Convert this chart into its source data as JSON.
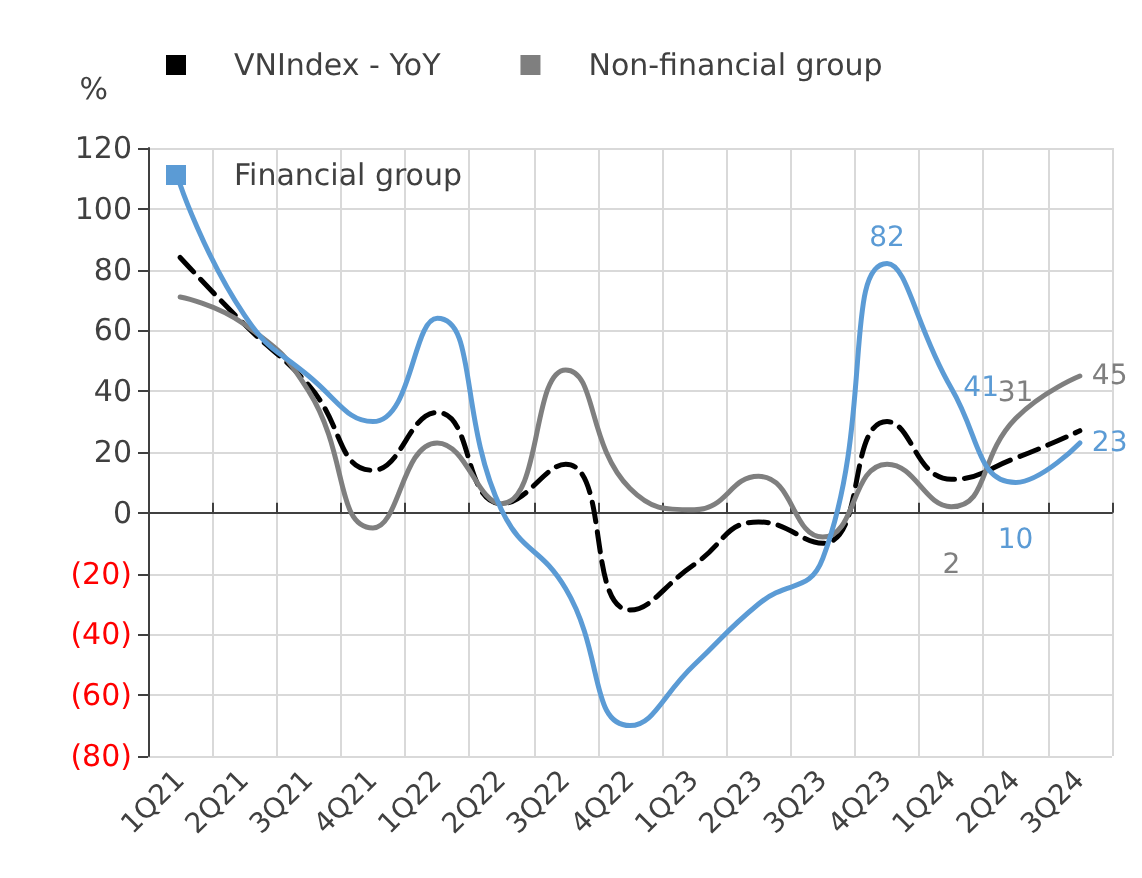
{
  "chart_data": {
    "type": "line",
    "ylabel": "%",
    "categories": [
      "1Q21",
      "2Q21",
      "3Q21",
      "4Q21",
      "1Q22",
      "2Q22",
      "3Q22",
      "4Q22",
      "1Q23",
      "2Q23",
      "3Q23",
      "4Q23",
      "1Q24",
      "2Q24",
      "3Q24"
    ],
    "series": [
      {
        "name": "VNIndex - YoY",
        "color": "#000000",
        "line_style": "dashed",
        "values": [
          84,
          62,
          42,
          14,
          33,
          3,
          16,
          -32,
          -17,
          -3,
          -10,
          30,
          11,
          18,
          27
        ]
      },
      {
        "name": "Non-financial group",
        "color": "#7f7f7f",
        "line_style": "solid",
        "values": [
          71,
          62,
          40,
          -5,
          23,
          3,
          47,
          8,
          1,
          12,
          -8,
          16,
          2,
          31,
          45
        ],
        "value_labels": [
          null,
          null,
          null,
          null,
          null,
          null,
          null,
          null,
          null,
          null,
          null,
          null,
          "2",
          "31",
          "45"
        ]
      },
      {
        "name": "Financial group",
        "color": "#5b9bd5",
        "line_style": "solid",
        "values": [
          108,
          65,
          45,
          30,
          64,
          1,
          -25,
          -70,
          -50,
          -30,
          -15,
          82,
          41,
          10,
          23
        ],
        "value_labels": [
          null,
          null,
          null,
          null,
          null,
          null,
          null,
          null,
          null,
          null,
          null,
          "82",
          "41",
          "10",
          "23"
        ]
      }
    ],
    "ylim": [
      -80,
      120
    ],
    "yticks": [
      {
        "value": -80,
        "label": "(80)"
      },
      {
        "value": -60,
        "label": "(60)"
      },
      {
        "value": -40,
        "label": "(40)"
      },
      {
        "value": -20,
        "label": "(20)"
      },
      0,
      20,
      40,
      60,
      80,
      100,
      120
    ],
    "grid": true,
    "legend": "top",
    "marker": "none"
  }
}
